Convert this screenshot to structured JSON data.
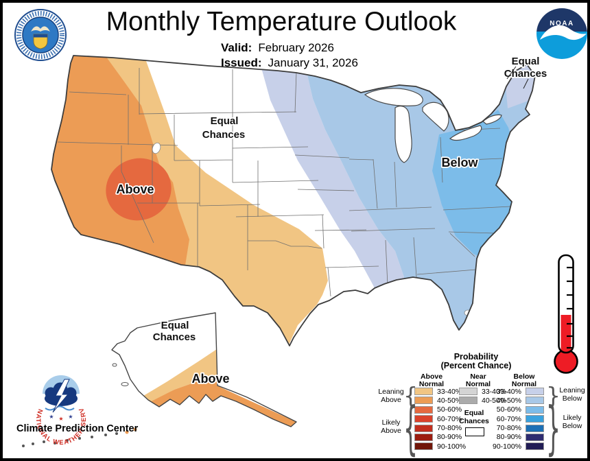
{
  "header": {
    "title": "Monthly Temperature Outlook",
    "valid_label": "Valid:",
    "valid_value": "February 2026",
    "issued_label": "Issued:",
    "issued_value": "January 31, 2026"
  },
  "logos": {
    "noaa_text": "NOAA",
    "nws_ring_text": "NATIONAL WEATHER SERVICE"
  },
  "map": {
    "labels": {
      "central_equal": [
        "Equal",
        "Chances"
      ],
      "west_above": "Above",
      "east_below": "Below",
      "northeast_equal": [
        "Equal",
        "Chances"
      ],
      "alaska_equal": [
        "Equal",
        "Chances"
      ],
      "alaska_above": "Above"
    }
  },
  "footer": {
    "org": "Climate Prediction Center"
  },
  "thermometer": {
    "fill": "#EE1C25"
  },
  "legend": {
    "title1": "Probability",
    "title2": "(Percent Chance)",
    "above_header": [
      "Above",
      "Normal"
    ],
    "near_header": [
      "Near",
      "Normal"
    ],
    "below_header": [
      "Below",
      "Normal"
    ],
    "equal_label": [
      "Equal",
      "Chances"
    ],
    "equal_color": "#FFFFFF",
    "above": [
      {
        "label": "33-40%",
        "color": "#F1C583"
      },
      {
        "label": "40-50%",
        "color": "#EC9C55"
      },
      {
        "label": "50-60%",
        "color": "#E5693F"
      },
      {
        "label": "60-70%",
        "color": "#DA422B"
      },
      {
        "label": "70-80%",
        "color": "#C22E1E"
      },
      {
        "label": "80-90%",
        "color": "#9C1D10"
      },
      {
        "label": "90-100%",
        "color": "#701609"
      }
    ],
    "near": [
      {
        "label": "33-40%",
        "color": "#D4D4D4"
      },
      {
        "label": "40-50%",
        "color": "#ABABAB"
      }
    ],
    "below": [
      {
        "label": "33-40%",
        "color": "#C7D0E9"
      },
      {
        "label": "40-50%",
        "color": "#A8C8E7"
      },
      {
        "label": "50-60%",
        "color": "#7CBCE9"
      },
      {
        "label": "60-70%",
        "color": "#3AA2DE"
      },
      {
        "label": "70-80%",
        "color": "#1C70B6"
      },
      {
        "label": "80-90%",
        "color": "#2E2C70"
      },
      {
        "label": "90-100%",
        "color": "#211C55"
      }
    ],
    "groups": {
      "leaning_above": [
        "Leaning",
        "Above"
      ],
      "likely_above": [
        "Likely",
        "Above"
      ],
      "leaning_below": [
        "Leaning",
        "Below"
      ],
      "likely_below": [
        "Likely",
        "Below"
      ]
    }
  }
}
